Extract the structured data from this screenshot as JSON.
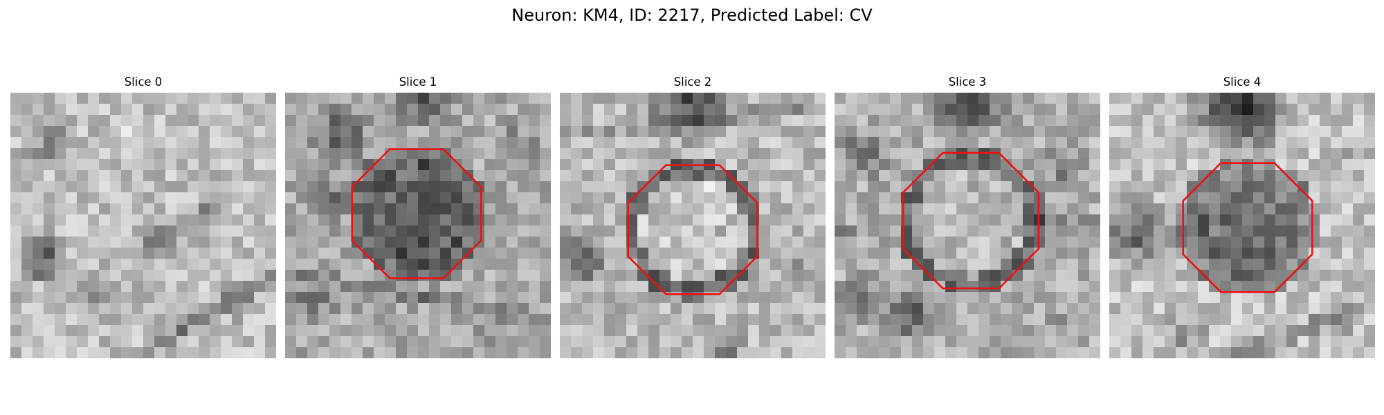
{
  "figure": {
    "title": "Neuron: KM4, ID: 2217, Predicted Label: CV"
  },
  "panels": [
    {
      "title": "Slice 0",
      "has_outline": false
    },
    {
      "title": "Slice 1",
      "has_outline": true
    },
    {
      "title": "Slice 2",
      "has_outline": true
    },
    {
      "title": "Slice 3",
      "has_outline": true
    },
    {
      "title": "Slice 4",
      "has_outline": true
    }
  ],
  "colors": {
    "outline": "#ee1111",
    "colormap": "gray"
  }
}
